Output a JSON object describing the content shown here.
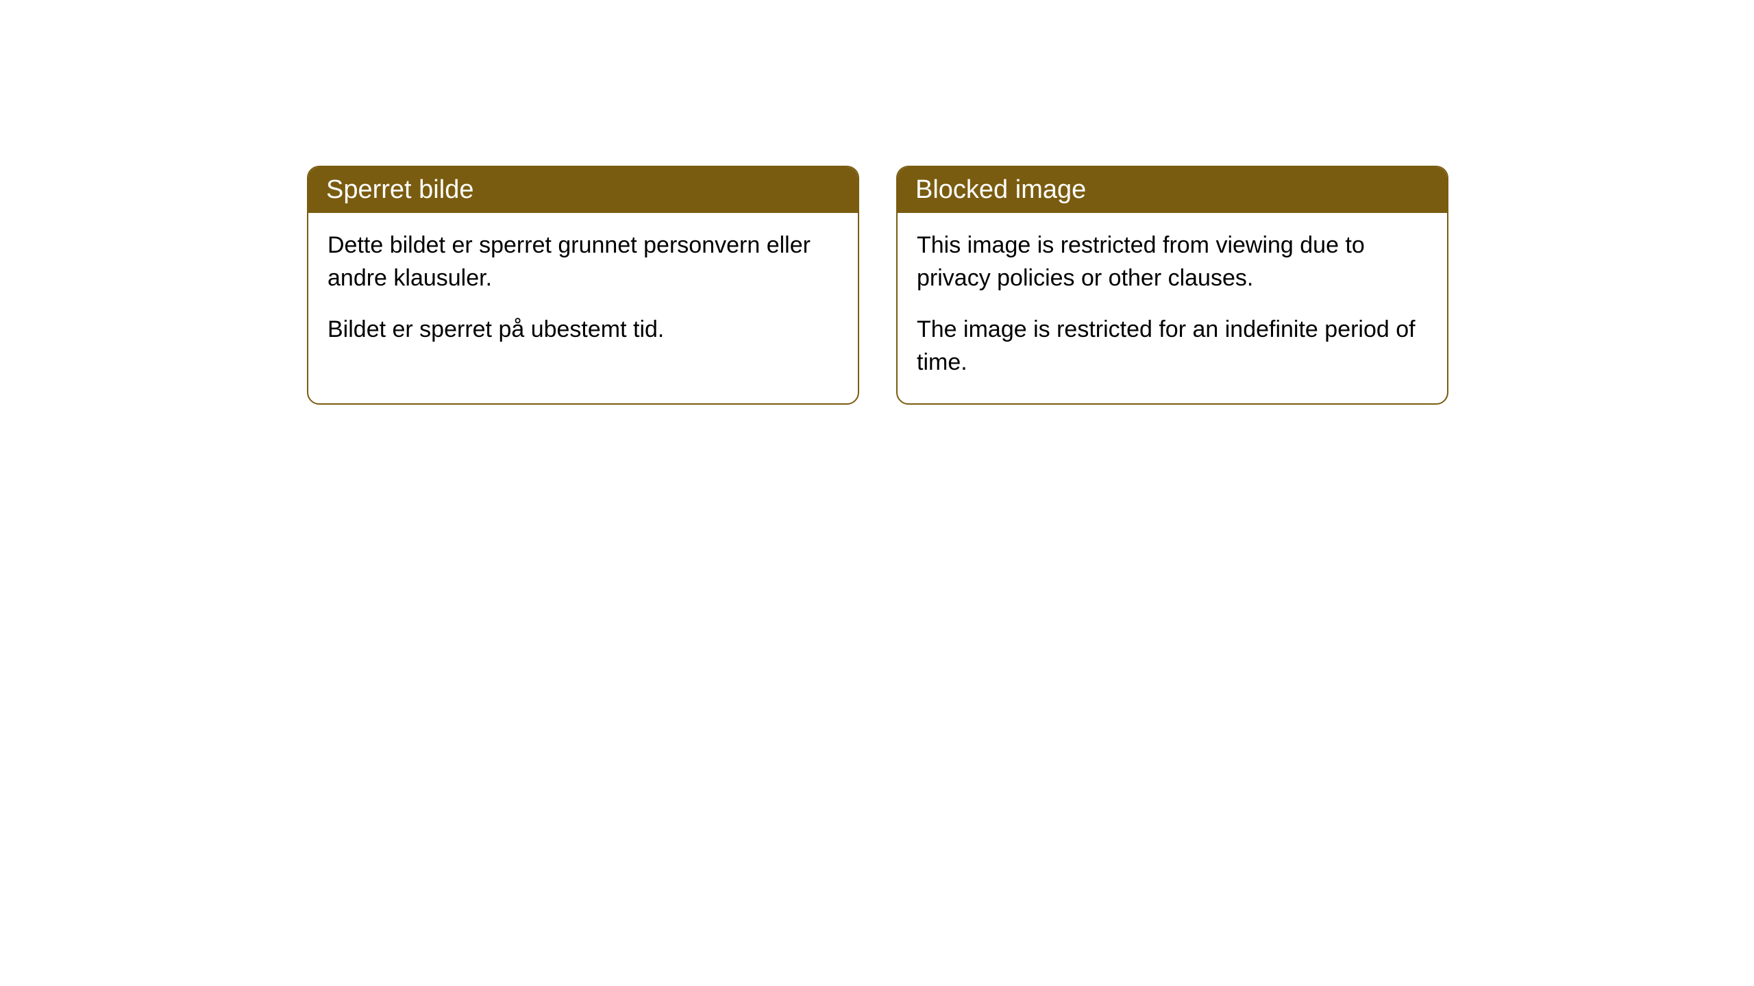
{
  "cards": [
    {
      "header": "Sperret bilde",
      "paragraphs": [
        "Dette bildet er sperret grunnet personvern eller andre klausuler.",
        "Bildet er sperret på ubestemt tid."
      ]
    },
    {
      "header": "Blocked image",
      "paragraphs": [
        "This image is restricted from viewing due to privacy policies or other clauses.",
        "The image is restricted for an indefinite period of time."
      ]
    }
  ],
  "colors": {
    "header_bg": "#7a5c10",
    "header_text": "#ffffff",
    "border": "#7a5c10",
    "body_text": "#000000",
    "card_bg": "#ffffff",
    "page_bg": "#ffffff"
  }
}
